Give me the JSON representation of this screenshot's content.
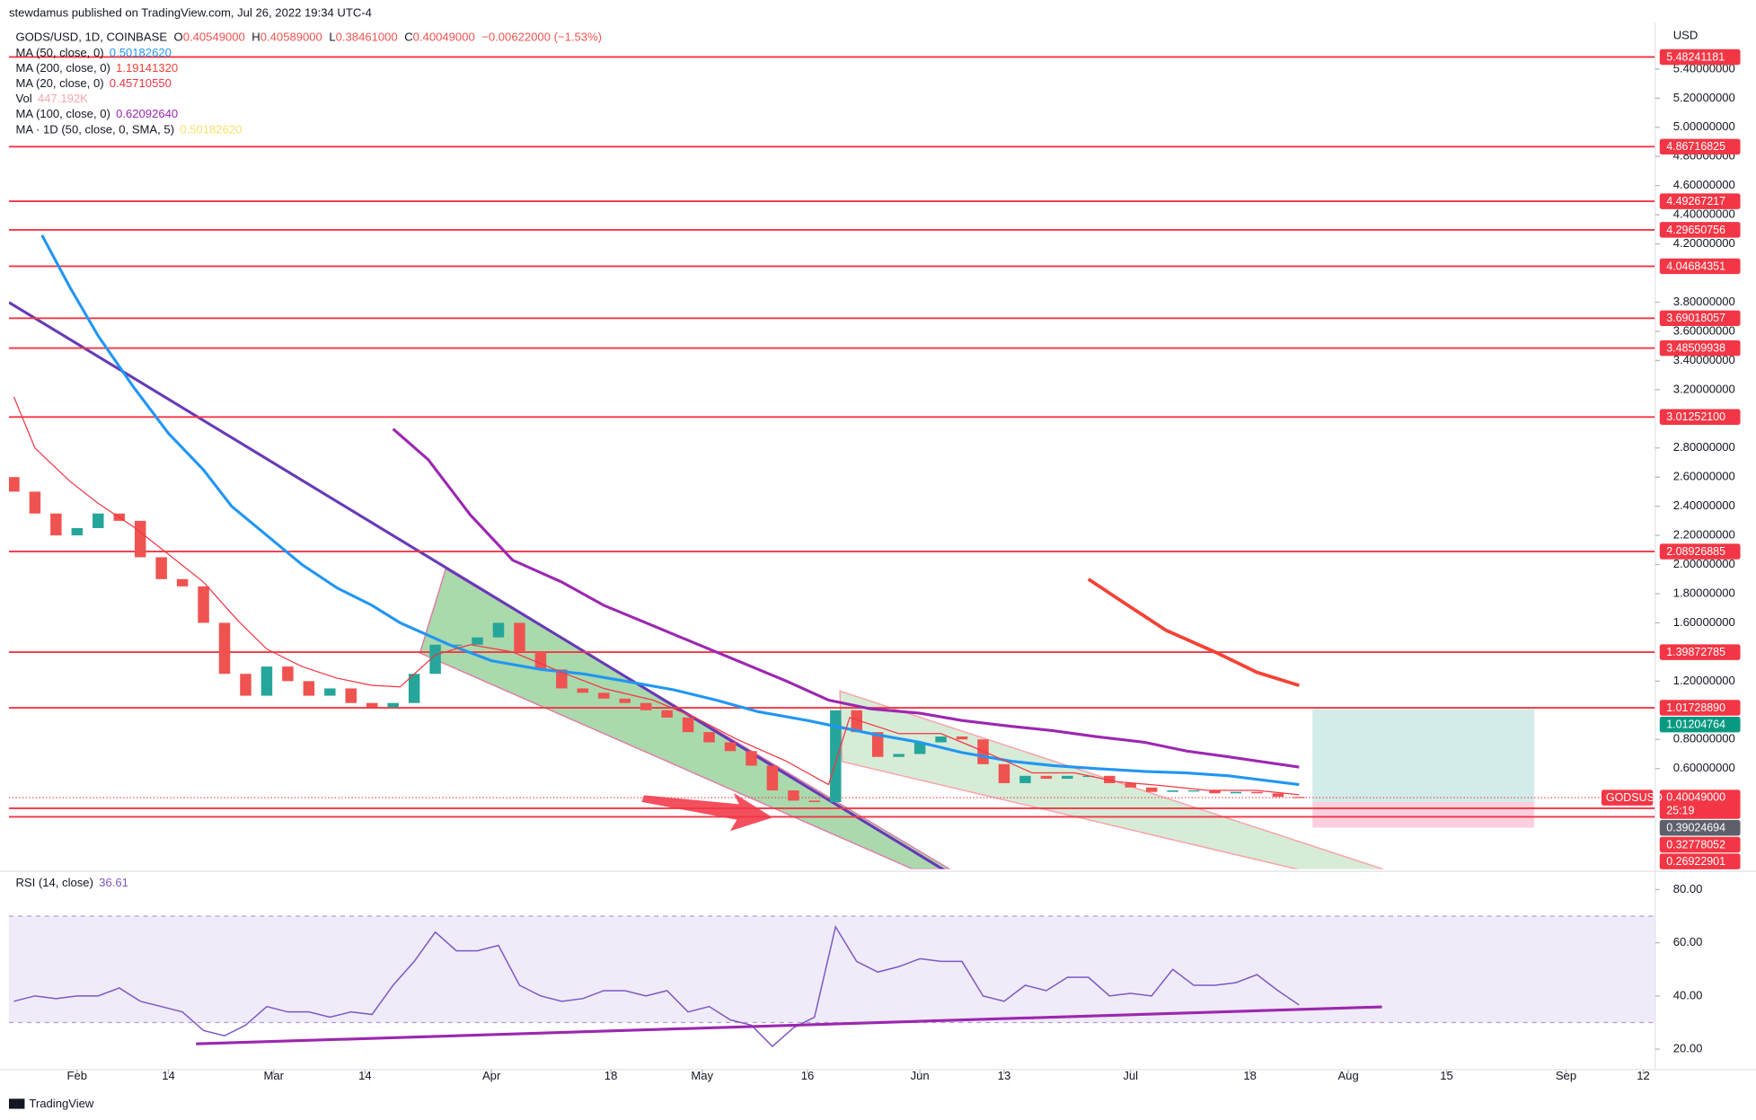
{
  "header": {
    "publisher": "stewdamus published on TradingView.com, Jul 26, 2022 19:34 UTC-4"
  },
  "footer": {
    "brand": "TradingView"
  },
  "chart_data": {
    "type": "candlestick",
    "title": "GODS/USD, 1D, COINBASE",
    "y_axis_label": "USD",
    "ohlc": [
      {
        "label": "O",
        "value": "0.40549000"
      },
      {
        "label": "H",
        "value": "0.40589000"
      },
      {
        "label": "L",
        "value": "0.38461000"
      },
      {
        "label": "C",
        "value": "0.40049000"
      }
    ],
    "change": "−0.00622000 (−1.53%)",
    "up_color": "#26a69a",
    "down_color": "#ef5350",
    "x": [
      23,
      26,
      29,
      32,
      35,
      38,
      41,
      44,
      47,
      50,
      53,
      56,
      59,
      62,
      65,
      68,
      71,
      74,
      77,
      80,
      83,
      86,
      89,
      92,
      95,
      98,
      101,
      104,
      107,
      110,
      113,
      116,
      119,
      122,
      125,
      128,
      131,
      134,
      137,
      140,
      143,
      146,
      149,
      152,
      155,
      158,
      161,
      164,
      167,
      170,
      173,
      176,
      179,
      182,
      185,
      188,
      191,
      194,
      197,
      200,
      203,
      206
    ],
    "open": [
      2.6,
      2.5,
      2.35,
      2.2,
      2.25,
      2.35,
      2.3,
      2.05,
      1.9,
      1.85,
      1.6,
      1.25,
      1.1,
      1.3,
      1.2,
      1.1,
      1.15,
      1.05,
      1.02,
      1.05,
      1.25,
      1.45,
      1.45,
      1.5,
      1.6,
      1.4,
      1.28,
      1.15,
      1.12,
      1.08,
      1.05,
      1.0,
      0.95,
      0.85,
      0.78,
      0.72,
      0.62,
      0.45,
      0.38,
      0.37,
      1.0,
      0.85,
      0.68,
      0.7,
      0.78,
      0.82,
      0.8,
      0.63,
      0.5,
      0.55,
      0.53,
      0.55,
      0.55,
      0.5,
      0.47,
      0.44,
      0.45,
      0.45,
      0.43,
      0.44,
      0.43,
      0.40549
    ],
    "close": [
      2.5,
      2.35,
      2.2,
      2.25,
      2.35,
      2.3,
      2.05,
      1.9,
      1.85,
      1.6,
      1.25,
      1.1,
      1.3,
      1.2,
      1.1,
      1.15,
      1.05,
      1.02,
      1.05,
      1.25,
      1.45,
      1.45,
      1.5,
      1.6,
      1.4,
      1.28,
      1.15,
      1.12,
      1.08,
      1.05,
      1.0,
      0.95,
      0.85,
      0.78,
      0.72,
      0.62,
      0.45,
      0.38,
      0.37,
      1.0,
      0.85,
      0.68,
      0.7,
      0.78,
      0.82,
      0.8,
      0.63,
      0.5,
      0.55,
      0.53,
      0.55,
      0.55,
      0.5,
      0.47,
      0.44,
      0.45,
      0.45,
      0.43,
      0.44,
      0.43,
      0.40549,
      0.40049
    ],
    "series": [
      {
        "name": "MA (50, close, 0)",
        "value_label": "0.50182620",
        "color": "#2196f3",
        "width": 2.5,
        "x": [
          27,
          31,
          35,
          40,
          45,
          50,
          54,
          59,
          64,
          69,
          74,
          78,
          85,
          91,
          98,
          104,
          110,
          117,
          123,
          129,
          136,
          140,
          145,
          152,
          158,
          165,
          171,
          177,
          184,
          190,
          196,
          206
        ],
        "values": [
          4.26,
          3.9,
          3.57,
          3.22,
          2.9,
          2.65,
          2.4,
          2.2,
          2.0,
          1.84,
          1.72,
          1.6,
          1.45,
          1.34,
          1.28,
          1.25,
          1.2,
          1.14,
          1.07,
          0.99,
          0.93,
          0.89,
          0.84,
          0.78,
          0.71,
          0.65,
          0.62,
          0.6,
          0.58,
          0.57,
          0.55,
          0.49
        ]
      },
      {
        "name": "MA (200, close, 0)",
        "value_label": "1.19141320",
        "color": "#f44336",
        "width": 3,
        "x": [
          176,
          181,
          187,
          194,
          200,
          206
        ],
        "values": [
          1.9,
          1.74,
          1.55,
          1.4,
          1.26,
          1.17
        ]
      },
      {
        "name": "MA (20, close, 0)",
        "value_label": "0.45710550",
        "color": "#f23645",
        "width": 1,
        "x": [
          23,
          26,
          31,
          35,
          40,
          45,
          50,
          55,
          59,
          64,
          69,
          74,
          78,
          83,
          88,
          94,
          101,
          107,
          114,
          120,
          126,
          133,
          139,
          142,
          149,
          155,
          161,
          168,
          174,
          180,
          187,
          193,
          200,
          206
        ],
        "values": [
          3.15,
          2.8,
          2.57,
          2.42,
          2.26,
          2.07,
          1.88,
          1.61,
          1.42,
          1.3,
          1.22,
          1.17,
          1.16,
          1.38,
          1.45,
          1.4,
          1.26,
          1.15,
          1.07,
          0.95,
          0.8,
          0.65,
          0.49,
          0.95,
          0.84,
          0.84,
          0.72,
          0.57,
          0.57,
          0.51,
          0.48,
          0.45,
          0.45,
          0.42
        ]
      },
      {
        "name": "MA (100, close, 0)",
        "value_label": "0.62092640",
        "color": "#9c27b0",
        "width": 2.5,
        "x": [
          77,
          82,
          88,
          94,
          101,
          107,
          114,
          120,
          126,
          133,
          139,
          145,
          152,
          158,
          165,
          171,
          177,
          184,
          190,
          196,
          206
        ],
        "values": [
          2.93,
          2.72,
          2.34,
          2.03,
          1.88,
          1.72,
          1.58,
          1.46,
          1.34,
          1.2,
          1.07,
          1.01,
          0.98,
          0.93,
          0.89,
          0.86,
          0.82,
          0.78,
          0.72,
          0.68,
          0.61
        ]
      }
    ],
    "volume": {
      "name": "Vol",
      "value_label": "447.192K"
    },
    "extra_ma": {
      "name": "MA · 1D (50, close, 0, SMA, 5)",
      "value_label": "0.50182620",
      "color": "#f7e26b"
    },
    "xlim": [
      22.3,
      256.7
    ],
    "xticks": [
      {
        "value": 32,
        "label": "Feb"
      },
      {
        "value": 45,
        "label": "14"
      },
      {
        "value": 60,
        "label": "Mar"
      },
      {
        "value": 73,
        "label": "14"
      },
      {
        "value": 91,
        "label": "Apr"
      },
      {
        "value": 108,
        "label": "18"
      },
      {
        "value": 121,
        "label": "May"
      },
      {
        "value": 136,
        "label": "16"
      },
      {
        "value": 152,
        "label": "Jun"
      },
      {
        "value": 164,
        "label": "13"
      },
      {
        "value": 182,
        "label": "Jul"
      },
      {
        "value": 199,
        "label": "18"
      },
      {
        "value": 213,
        "label": "Aug"
      },
      {
        "value": 227,
        "label": "15"
      },
      {
        "value": 244,
        "label": "Sep"
      },
      {
        "value": 255,
        "label": "12"
      }
    ],
    "ylim": [
      -0.09,
      5.72
    ],
    "yticks": [
      {
        "value": 5.4,
        "label": "5.40000000"
      },
      {
        "value": 5.2,
        "label": "5.20000000"
      },
      {
        "value": 5.0,
        "label": "5.00000000"
      },
      {
        "value": 4.8,
        "label": "4.80000000"
      },
      {
        "value": 4.6,
        "label": "4.60000000"
      },
      {
        "value": 4.4,
        "label": "4.40000000"
      },
      {
        "value": 4.2,
        "label": "4.20000000"
      },
      {
        "value": 3.8,
        "label": "3.80000000"
      },
      {
        "value": 3.6,
        "label": "3.60000000"
      },
      {
        "value": 3.4,
        "label": "3.40000000"
      },
      {
        "value": 3.2,
        "label": "3.20000000"
      },
      {
        "value": 2.8,
        "label": "2.80000000"
      },
      {
        "value": 2.6,
        "label": "2.60000000"
      },
      {
        "value": 2.4,
        "label": "2.40000000"
      },
      {
        "value": 2.2,
        "label": "2.20000000"
      },
      {
        "value": 2.0,
        "label": "2.00000000"
      },
      {
        "value": 1.8,
        "label": "1.80000000"
      },
      {
        "value": 1.6,
        "label": "1.60000000"
      },
      {
        "value": 1.2,
        "label": "1.20000000"
      },
      {
        "value": 0.8,
        "label": "0.80000000"
      },
      {
        "value": 0.6,
        "label": "0.60000000"
      }
    ],
    "levels": [
      {
        "value": 5.48241181,
        "label": "5.48241181",
        "color": "#f23645",
        "line": true
      },
      {
        "value": 4.86716825,
        "label": "4.86716825",
        "color": "#f23645",
        "line": true
      },
      {
        "value": 4.49267217,
        "label": "4.49267217",
        "color": "#f23645",
        "line": true
      },
      {
        "value": 4.29650756,
        "label": "4.29650756",
        "color": "#f23645",
        "line": true
      },
      {
        "value": 4.04684351,
        "label": "4.04684351",
        "color": "#f23645",
        "line": true
      },
      {
        "value": 3.69018057,
        "label": "3.69018057",
        "color": "#f23645",
        "line": true
      },
      {
        "value": 3.48509938,
        "label": "3.48509938",
        "color": "#f23645",
        "line": true
      },
      {
        "value": 3.012521,
        "label": "3.01252100",
        "color": "#f23645",
        "line": true
      },
      {
        "value": 2.08926885,
        "label": "2.08926885",
        "color": "#f23645",
        "line": true
      },
      {
        "value": 1.39872785,
        "label": "1.39872785",
        "color": "#f23645",
        "line": true
      },
      {
        "value": 1.0172889,
        "label": "1.01728890",
        "color": "#f23645",
        "line": true
      },
      {
        "value": 1.01204764,
        "label": "1.01204764",
        "color": "#089981",
        "line": false
      },
      {
        "value": 0.39024694,
        "label": "0.39024694",
        "color": "#5d606b",
        "line": false
      },
      {
        "value": 0.32778052,
        "label": "0.32778052",
        "color": "#f23645",
        "line": true
      },
      {
        "value": 0.26922901,
        "label": "0.26922901",
        "color": "#f23645",
        "line": true
      }
    ],
    "last": {
      "symbol": "GODSUSD",
      "value": 0.40049,
      "label": "0.40049000",
      "countdown": "25:19",
      "color": "#f23645"
    },
    "rsi": {
      "name": "RSI (14, close)",
      "value": 36.61,
      "color": "#7e57c2",
      "band": [
        30,
        70
      ],
      "ylim": [
        12.3,
        86
      ],
      "yticks": [
        {
          "value": 80,
          "label": "80.00"
        },
        {
          "value": 60,
          "label": "60.00"
        },
        {
          "value": 40,
          "label": "40.00"
        },
        {
          "value": 20,
          "label": "20.00"
        }
      ],
      "values": [
        38,
        40,
        39,
        40,
        40,
        43,
        38,
        36,
        34,
        27,
        25,
        29,
        36,
        34,
        34,
        32,
        34,
        33,
        44,
        53,
        64,
        57,
        57,
        59,
        44,
        40,
        38,
        39,
        42,
        42,
        40,
        42,
        34,
        36,
        31,
        29,
        21,
        28,
        32,
        66,
        53,
        49,
        51,
        54,
        53,
        53,
        40,
        38,
        44,
        42,
        47,
        47,
        40,
        41,
        40,
        50,
        44,
        44,
        45,
        48,
        42,
        36.61
      ]
    }
  }
}
